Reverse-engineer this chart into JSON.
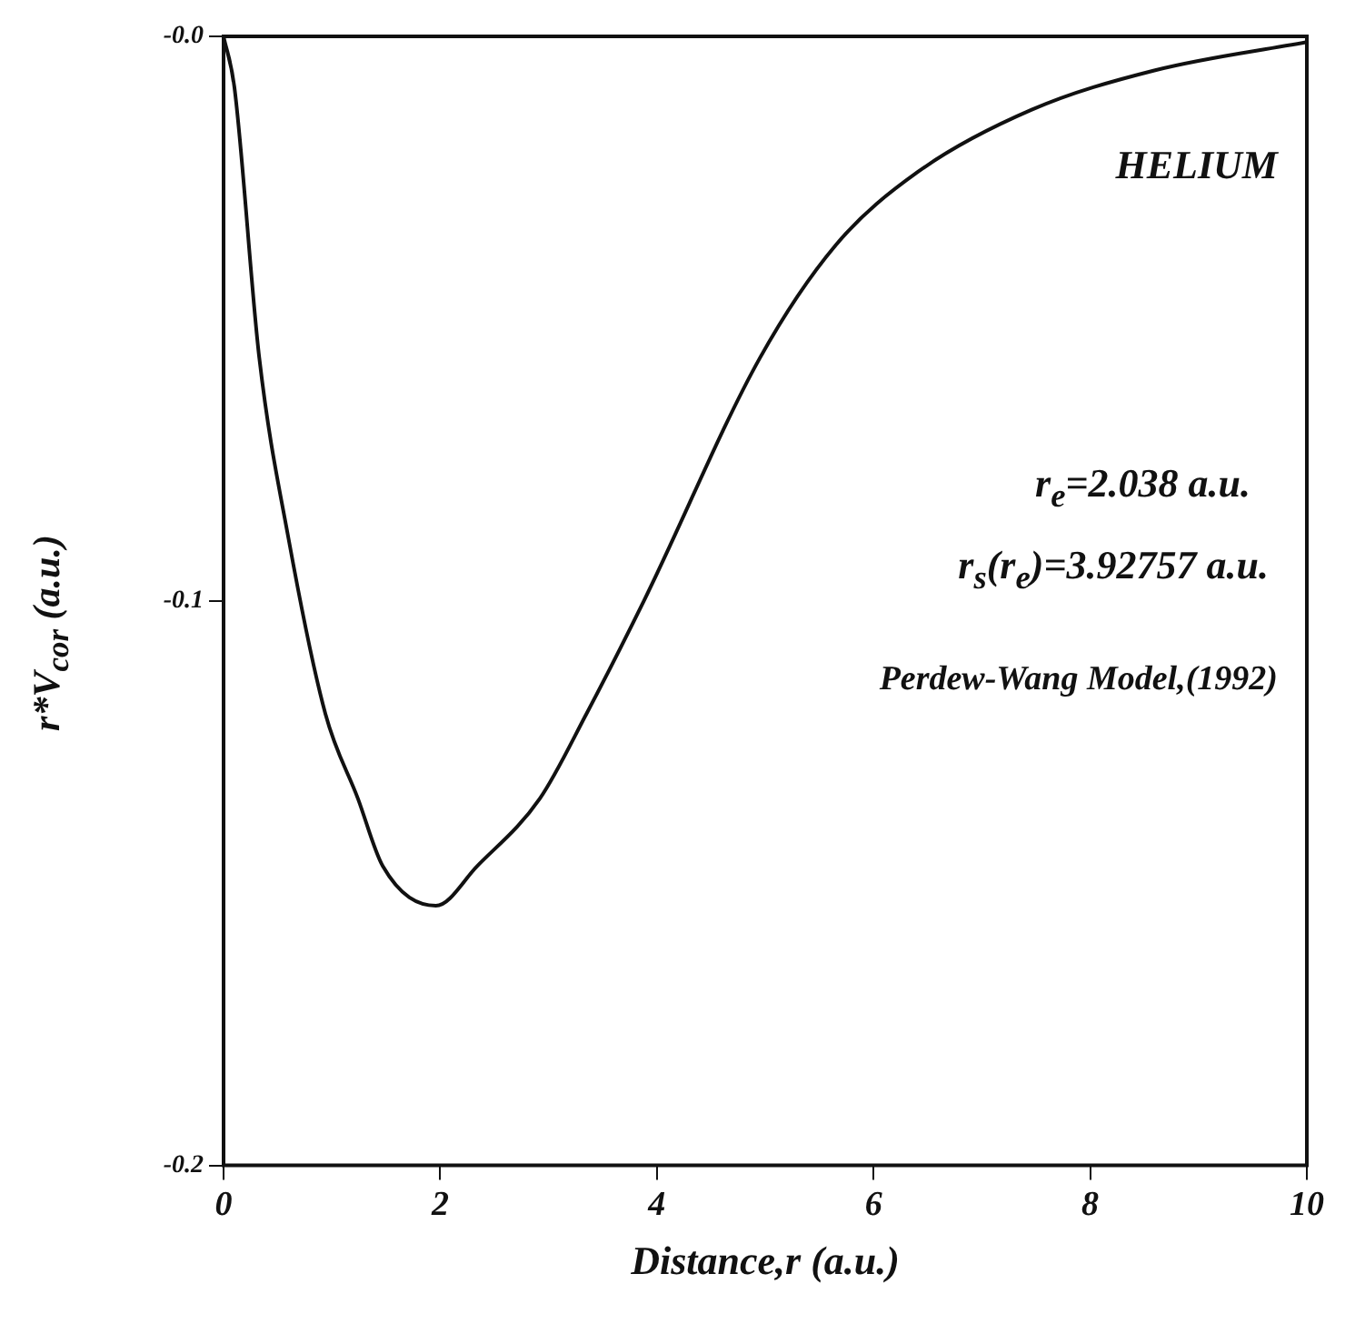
{
  "chart_data": {
    "type": "line",
    "xlabel": "Distance,r (a.u.)",
    "ylabel": "r*V$_{cor}$ (a.u.)",
    "annotations": [
      "HELIUM",
      "r$_{e}$=2.038  a.u.",
      "r$_{s}$(r$_{e}$)=3.92757  a.u.",
      "Perdew-Wang Model,(1992)"
    ],
    "x": [
      0,
      0.1,
      0.33,
      0.6,
      0.94,
      1.24,
      1.47,
      1.96,
      2.34,
      2.92,
      3.35,
      3.88,
      4.95,
      5.65,
      6.41,
      7.46,
      8.6,
      10
    ],
    "series": [
      {
        "color": "#111111",
        "values": [
          0,
          -0.009,
          -0.057,
          -0.089,
          -0.12,
          -0.135,
          -0.147,
          -0.154,
          -0.147,
          -0.135,
          -0.12,
          -0.1,
          -0.057,
          -0.037,
          -0.024,
          -0.013,
          -0.006,
          -0.001
        ]
      }
    ],
    "xlim": [
      0,
      10
    ],
    "xticks": [
      0,
      2,
      4,
      6,
      8,
      10
    ],
    "ylim": [
      -0.2,
      0
    ],
    "yticks": [
      -0.2,
      -0.1,
      {
        "value": 0,
        "label": "-0.0"
      }
    ],
    "grid": false,
    "legend": false,
    "marker": "none",
    "line_style": "solid"
  }
}
